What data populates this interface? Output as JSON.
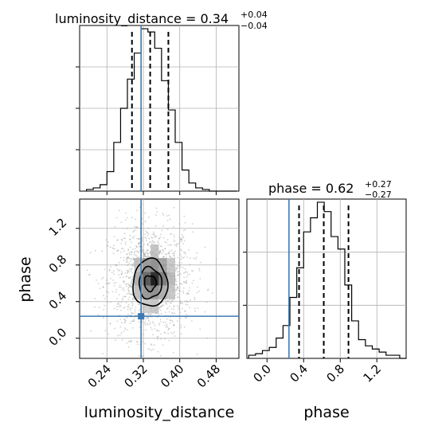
{
  "chart_data": [
    {
      "type": "histogram",
      "panel": "luminosity_distance",
      "title_main": "luminosity_distance = 0.34",
      "title_sup": "+0.04",
      "title_sub": "−0.04",
      "xlim": [
        0.18,
        0.53
      ],
      "bin_edges": [
        0.195,
        0.21,
        0.225,
        0.24,
        0.255,
        0.27,
        0.285,
        0.3,
        0.315,
        0.33,
        0.345,
        0.36,
        0.375,
        0.39,
        0.405,
        0.42,
        0.435,
        0.45,
        0.465,
        0.48,
        0.495,
        0.51,
        0.525
      ],
      "counts": [
        0.01,
        0.02,
        0.04,
        0.12,
        0.3,
        0.51,
        0.69,
        0.85,
        1.0,
        0.98,
        0.88,
        0.68,
        0.5,
        0.3,
        0.13,
        0.05,
        0.02,
        0.01,
        0,
        0,
        0,
        0
      ],
      "quantiles": [
        0.295,
        0.335,
        0.375
      ],
      "truth": 0.315
    },
    {
      "type": "histogram",
      "panel": "phase",
      "title_main": "phase = 0.62",
      "title_sup": "+0.27",
      "title_sub": "−0.27",
      "xlim": [
        -0.22,
        1.52
      ],
      "bin_edges": [
        -0.2,
        -0.125,
        -0.05,
        0.025,
        0.1,
        0.175,
        0.25,
        0.325,
        0.4,
        0.475,
        0.55,
        0.625,
        0.7,
        0.775,
        0.85,
        0.925,
        1.0,
        1.075,
        1.15,
        1.225,
        1.3,
        1.375,
        1.45,
        1.525
      ],
      "counts": [
        0.02,
        0.03,
        0.05,
        0.07,
        0.13,
        0.21,
        0.39,
        0.58,
        0.81,
        0.9,
        1.0,
        0.94,
        0.78,
        0.7,
        0.47,
        0.24,
        0.12,
        0.08,
        0.06,
        0.04,
        0.02,
        0.02,
        0
      ],
      "quantiles": [
        0.35,
        0.62,
        0.89
      ],
      "truth": 0.24,
      "x_ticks": [
        "0.0",
        "0.4",
        "0.8",
        "1.2"
      ],
      "x_tick_values": [
        0.0,
        0.4,
        0.8,
        1.2
      ],
      "xlabel": "phase"
    },
    {
      "type": "scatter",
      "panel": "luminosity_distance vs phase",
      "xlim": [
        0.18,
        0.53
      ],
      "ylim": [
        -0.22,
        1.52
      ],
      "x_ticks": [
        "0.24",
        "0.32",
        "0.40",
        "0.48"
      ],
      "x_tick_values": [
        0.24,
        0.32,
        0.4,
        0.48
      ],
      "y_ticks": [
        "0.0",
        "0.4",
        "0.8",
        "1.2"
      ],
      "y_tick_values": [
        0.0,
        0.4,
        0.8,
        1.2
      ],
      "xlabel": "luminosity_distance",
      "ylabel": "phase",
      "center": [
        0.335,
        0.62
      ],
      "spread": [
        0.04,
        0.27
      ],
      "truth": [
        0.315,
        0.24
      ],
      "density_cells": [
        {
          "x": 0.345,
          "y": 0.65,
          "level": 1.0
        },
        {
          "x": 0.327,
          "y": 0.65,
          "level": 0.7
        },
        {
          "x": 0.363,
          "y": 0.65,
          "level": 0.65
        },
        {
          "x": 0.345,
          "y": 0.8,
          "level": 0.55
        },
        {
          "x": 0.327,
          "y": 0.8,
          "level": 0.5
        },
        {
          "x": 0.363,
          "y": 0.8,
          "level": 0.45
        },
        {
          "x": 0.345,
          "y": 0.5,
          "level": 0.5
        },
        {
          "x": 0.327,
          "y": 0.5,
          "level": 0.45
        },
        {
          "x": 0.363,
          "y": 0.5,
          "level": 0.4
        },
        {
          "x": 0.309,
          "y": 0.65,
          "level": 0.4
        },
        {
          "x": 0.381,
          "y": 0.65,
          "level": 0.35
        },
        {
          "x": 0.345,
          "y": 0.95,
          "level": 0.3
        },
        {
          "x": 0.309,
          "y": 0.8,
          "level": 0.3
        },
        {
          "x": 0.381,
          "y": 0.5,
          "level": 0.28
        },
        {
          "x": 0.309,
          "y": 0.5,
          "level": 0.3
        },
        {
          "x": 0.381,
          "y": 0.8,
          "level": 0.27
        },
        {
          "x": 0.327,
          "y": 0.35,
          "level": 0.25
        },
        {
          "x": 0.345,
          "y": 0.35,
          "level": 0.27
        }
      ],
      "contour_levels": [
        {
          "rx": 0.038,
          "ry": 0.26,
          "shade": "#ececec"
        },
        {
          "rx": 0.025,
          "ry": 0.17,
          "shade": "#bdbdbd"
        },
        {
          "rx": 0.013,
          "ry": 0.085,
          "shade": "#7a7a7a"
        }
      ]
    }
  ],
  "colors": {
    "truth": "#3d7ab3",
    "line": "#000000",
    "grid": "#b0b0b0"
  }
}
